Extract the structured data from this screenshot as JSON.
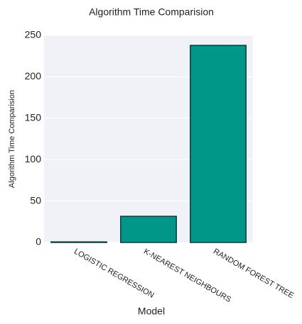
{
  "chart_data": {
    "type": "bar",
    "title": "Algorithm Time Comparision",
    "x_label": "Model",
    "y_label": "Algorithm Time Comparision",
    "categories": [
      "LOGISTIC REGRESSION",
      "K-NEAREST NEIGHBOURS",
      "RANDOM FOREST TREE"
    ],
    "values": [
      0.7,
      31.6,
      238
    ],
    "color": "#009688",
    "edge_color": "#0d3b3b",
    "ylim": [
      0,
      250
    ],
    "yticks": [
      0,
      50,
      100,
      150,
      200,
      250
    ],
    "grid": true
  }
}
